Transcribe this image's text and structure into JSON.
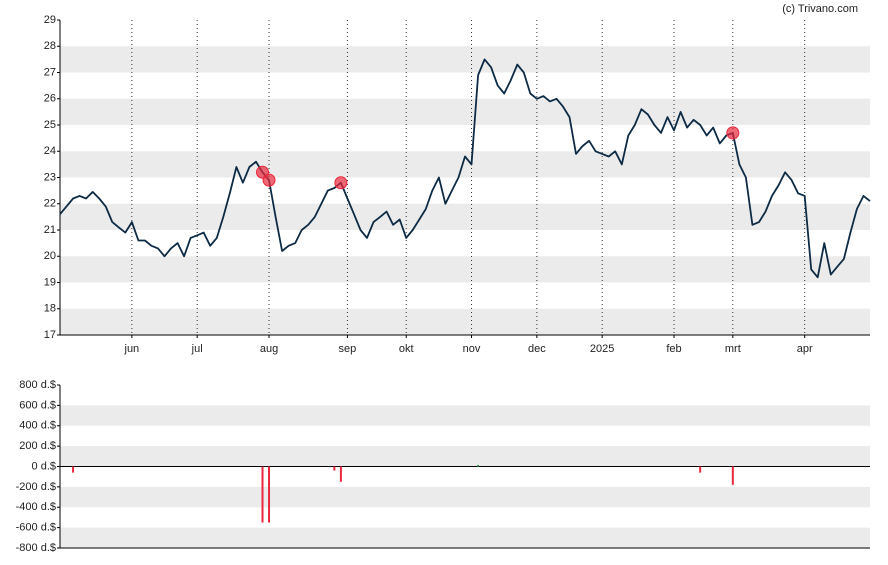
{
  "credit": "(c) Trivano.com",
  "chart_data": [
    {
      "type": "line",
      "color": "#0d2b45",
      "marker_color": "#e8283c",
      "grid": true,
      "categories": [
        null,
        null,
        null,
        null,
        null,
        null,
        null,
        null,
        null,
        null,
        null,
        "jun",
        null,
        null,
        null,
        null,
        null,
        null,
        null,
        null,
        null,
        "jul",
        null,
        null,
        null,
        null,
        null,
        null,
        null,
        null,
        null,
        null,
        "aug",
        null,
        null,
        null,
        null,
        null,
        null,
        null,
        null,
        null,
        null,
        null,
        "sep",
        null,
        null,
        null,
        null,
        null,
        null,
        null,
        null,
        "okt",
        null,
        null,
        null,
        null,
        null,
        null,
        null,
        null,
        null,
        "nov",
        null,
        null,
        null,
        null,
        null,
        null,
        null,
        null,
        null,
        "dec",
        null,
        null,
        null,
        null,
        null,
        null,
        null,
        null,
        null,
        "2025",
        null,
        null,
        null,
        null,
        null,
        null,
        null,
        null,
        null,
        null,
        "feb",
        null,
        null,
        null,
        null,
        null,
        null,
        null,
        null,
        "mrt",
        null,
        null,
        null,
        null,
        null,
        null,
        null,
        null,
        null,
        null,
        "apr",
        null,
        null,
        null,
        null,
        null,
        null,
        null,
        null,
        null,
        null
      ],
      "values": [
        21.6,
        21.9,
        22.2,
        22.3,
        22.2,
        22.45,
        22.2,
        21.9,
        21.3,
        21.1,
        20.9,
        21.3,
        20.6,
        20.6,
        20.4,
        20.3,
        20.0,
        20.3,
        20.5,
        20.0,
        20.7,
        20.8,
        20.9,
        20.4,
        20.7,
        21.5,
        22.4,
        23.4,
        22.8,
        23.4,
        23.6,
        23.2,
        22.9,
        21.5,
        20.2,
        20.4,
        20.5,
        21.0,
        21.2,
        21.5,
        22.0,
        22.5,
        22.6,
        22.8,
        22.2,
        21.6,
        21.0,
        20.7,
        21.3,
        21.5,
        21.7,
        21.2,
        21.4,
        20.7,
        21.0,
        21.4,
        21.8,
        22.5,
        23.0,
        22.0,
        22.5,
        23.0,
        23.8,
        23.5,
        26.9,
        27.5,
        27.2,
        26.5,
        26.2,
        26.7,
        27.3,
        27.0,
        26.2,
        26.0,
        26.1,
        25.9,
        26.0,
        25.7,
        25.3,
        23.9,
        24.2,
        24.4,
        24.0,
        23.9,
        23.8,
        24.0,
        23.5,
        24.6,
        25.0,
        25.6,
        25.4,
        25.0,
        24.7,
        25.3,
        24.8,
        25.5,
        24.9,
        25.2,
        25.0,
        24.6,
        24.9,
        24.3,
        24.6,
        24.7,
        23.5,
        23.0,
        21.2,
        21.3,
        21.7,
        22.3,
        22.7,
        23.2,
        22.9,
        22.4,
        22.3,
        19.5,
        19.2,
        20.5,
        19.3,
        19.6,
        19.9,
        20.9,
        21.8,
        22.3,
        22.1
      ],
      "markers": [
        null,
        null,
        null,
        null,
        null,
        null,
        null,
        null,
        null,
        null,
        null,
        null,
        null,
        null,
        null,
        null,
        null,
        null,
        null,
        null,
        null,
        null,
        null,
        null,
        null,
        null,
        null,
        null,
        null,
        null,
        null,
        23.2,
        22.9,
        null,
        null,
        null,
        null,
        null,
        null,
        null,
        null,
        null,
        null,
        22.8,
        null,
        null,
        null,
        null,
        null,
        null,
        null,
        null,
        null,
        null,
        null,
        null,
        null,
        null,
        null,
        null,
        null,
        null,
        null,
        null,
        null,
        null,
        null,
        null,
        null,
        null,
        null,
        null,
        null,
        null,
        null,
        null,
        null,
        null,
        null,
        null,
        null,
        null,
        null,
        null,
        null,
        null,
        null,
        null,
        null,
        null,
        null,
        null,
        null,
        null,
        null,
        null,
        null,
        null,
        null,
        null,
        null,
        null,
        null,
        24.7,
        null,
        null,
        null,
        null,
        null,
        null,
        null,
        null,
        null,
        null,
        null,
        null,
        null,
        null,
        null,
        null,
        null,
        null,
        null,
        null,
        null
      ],
      "ylim": [
        17,
        29
      ],
      "yticks": [
        17,
        18,
        19,
        20,
        21,
        22,
        23,
        24,
        25,
        26,
        27,
        28,
        29
      ]
    },
    {
      "type": "bar",
      "colors": {
        "negative": "#e8283c",
        "positive": "#2a9d5a"
      },
      "grid": true,
      "values": [
        null,
        null,
        -60,
        null,
        null,
        null,
        null,
        null,
        null,
        null,
        null,
        null,
        null,
        null,
        null,
        null,
        null,
        null,
        null,
        null,
        null,
        null,
        null,
        null,
        null,
        null,
        null,
        null,
        null,
        null,
        null,
        -550,
        -550,
        null,
        null,
        null,
        null,
        null,
        null,
        null,
        null,
        null,
        -40,
        -150,
        null,
        null,
        null,
        null,
        null,
        null,
        null,
        null,
        null,
        null,
        null,
        null,
        null,
        null,
        null,
        null,
        null,
        null,
        null,
        null,
        15,
        null,
        null,
        null,
        null,
        null,
        null,
        null,
        null,
        null,
        null,
        null,
        null,
        null,
        null,
        null,
        null,
        null,
        null,
        null,
        null,
        null,
        null,
        null,
        null,
        null,
        null,
        null,
        null,
        null,
        null,
        null,
        null,
        null,
        -60,
        null,
        null,
        null,
        null,
        -180,
        null,
        null,
        null,
        null,
        null,
        null,
        null,
        null,
        null,
        null,
        null,
        null,
        null,
        null,
        null,
        null,
        null,
        null,
        null,
        null,
        null
      ],
      "ylim": [
        -800,
        800
      ],
      "yticks": [
        {
          "value": -800,
          "label": "-800 d.$"
        },
        {
          "value": -600,
          "label": "-600 d.$"
        },
        {
          "value": -400,
          "label": "-400 d.$"
        },
        {
          "value": -200,
          "label": "-200 d.$"
        },
        {
          "value": 0,
          "label": "0 d.$"
        },
        {
          "value": 200,
          "label": "200 d.$"
        },
        {
          "value": 400,
          "label": "400 d.$"
        },
        {
          "value": 600,
          "label": "600 d.$"
        },
        {
          "value": 800,
          "label": "800 d.$"
        }
      ]
    }
  ]
}
